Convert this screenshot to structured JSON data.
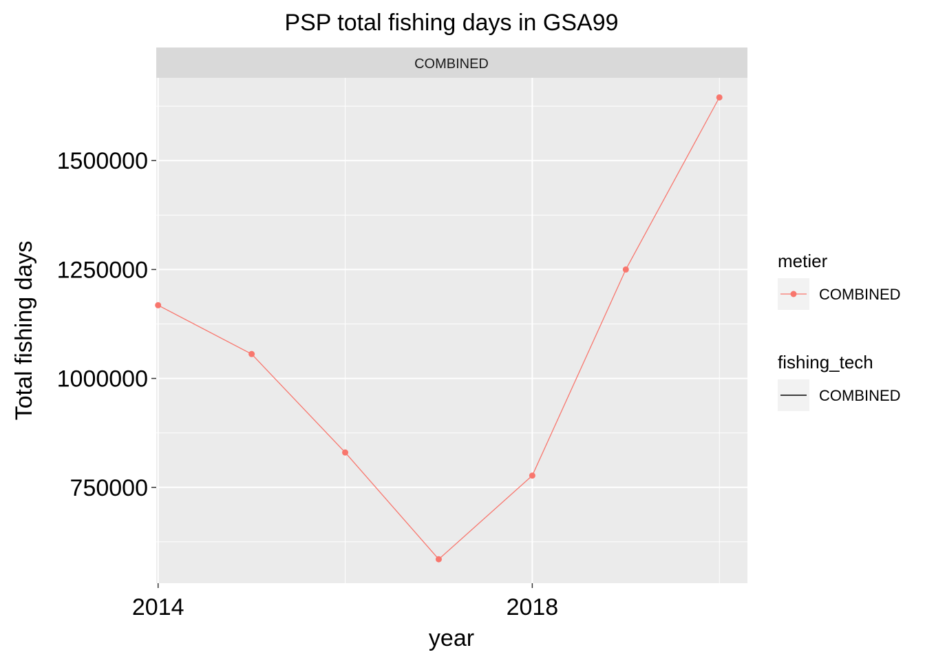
{
  "chart_data": {
    "type": "line",
    "title": "PSP total fishing days in GSA99",
    "facet_label": "COMBINED",
    "xlabel": "year",
    "ylabel": "Total fishing days",
    "x": [
      2014,
      2015,
      2016,
      2017,
      2018,
      2019,
      2020
    ],
    "series": [
      {
        "name": "COMBINED",
        "color": "#F8766D",
        "values": [
          1168000,
          1056000,
          830000,
          585000,
          777000,
          1250000,
          1645000
        ]
      }
    ],
    "xlim": [
      2013.98,
      2020.3
    ],
    "ylim": [
      530000,
      1690000
    ],
    "x_ticks": [
      2014,
      2018
    ],
    "x_tick_labels": [
      "2014",
      "2018"
    ],
    "x_minor_ticks": [
      2016,
      2020
    ],
    "y_ticks": [
      750000,
      1000000,
      1250000,
      1500000
    ],
    "y_tick_labels": [
      "750000",
      "1000000",
      "1250000",
      "1500000"
    ],
    "y_minor_ticks": [
      625000,
      875000,
      1125000,
      1375000,
      1625000
    ],
    "grid": true,
    "legend_position": "right",
    "legends": [
      {
        "title": "metier",
        "label": "COMBINED",
        "key": "point-line",
        "color": "#F8766D"
      },
      {
        "title": "fishing_tech",
        "label": "COMBINED",
        "key": "line",
        "color": "#000000"
      }
    ],
    "colors": {
      "panel_background": "#EBEBEB",
      "strip_background": "#D9D9D9",
      "grid": "#FFFFFF",
      "legend_key_background": "#F2F2F2"
    }
  }
}
